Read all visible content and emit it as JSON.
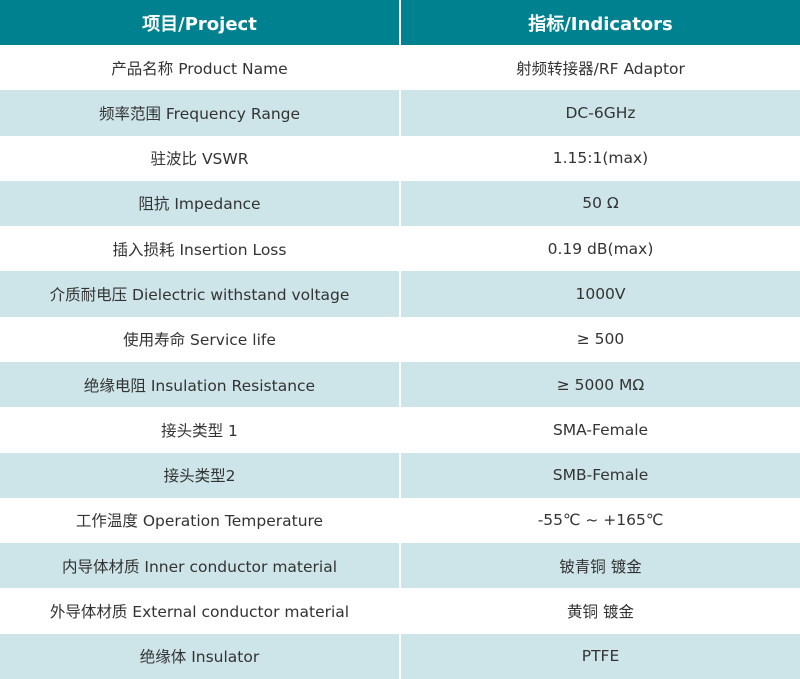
{
  "header": {
    "project": "项目/Project",
    "indicators": "指标/Indicators"
  },
  "colors": {
    "header_bg": "#00818f",
    "alt_row_bg": "#cde5e9"
  },
  "rows": [
    {
      "project": "产品名称 Product Name",
      "value": "射频转接器/RF Adaptor"
    },
    {
      "project": "频率范围 Frequency Range",
      "value": "DC-6GHz"
    },
    {
      "project": "驻波比 VSWR",
      "value": "1.15:1(max)"
    },
    {
      "project": "阻抗 Impedance",
      "value": "50 Ω"
    },
    {
      "project": "插入损耗 Insertion Loss",
      "value": "0.19 dB(max)"
    },
    {
      "project": "介质耐电压 Dielectric withstand voltage",
      "value": "1000V"
    },
    {
      "project": "使用寿命 Service life",
      "value": "≥ 500"
    },
    {
      "project": "绝缘电阻 Insulation Resistance",
      "value": "≥ 5000 MΩ"
    },
    {
      "project": "接头类型 1",
      "value": "SMA-Female"
    },
    {
      "project": "接头类型2",
      "value": "SMB-Female"
    },
    {
      "project": "工作温度 Operation Temperature",
      "value": "-55℃ ~ +165℃"
    },
    {
      "project": "内导体材质 Inner conductor material",
      "value": "铍青铜 镀金"
    },
    {
      "project": "外导体材质 External conductor material",
      "value": "黄铜 镀金"
    },
    {
      "project": "绝缘体 Insulator",
      "value": "PTFE"
    }
  ]
}
